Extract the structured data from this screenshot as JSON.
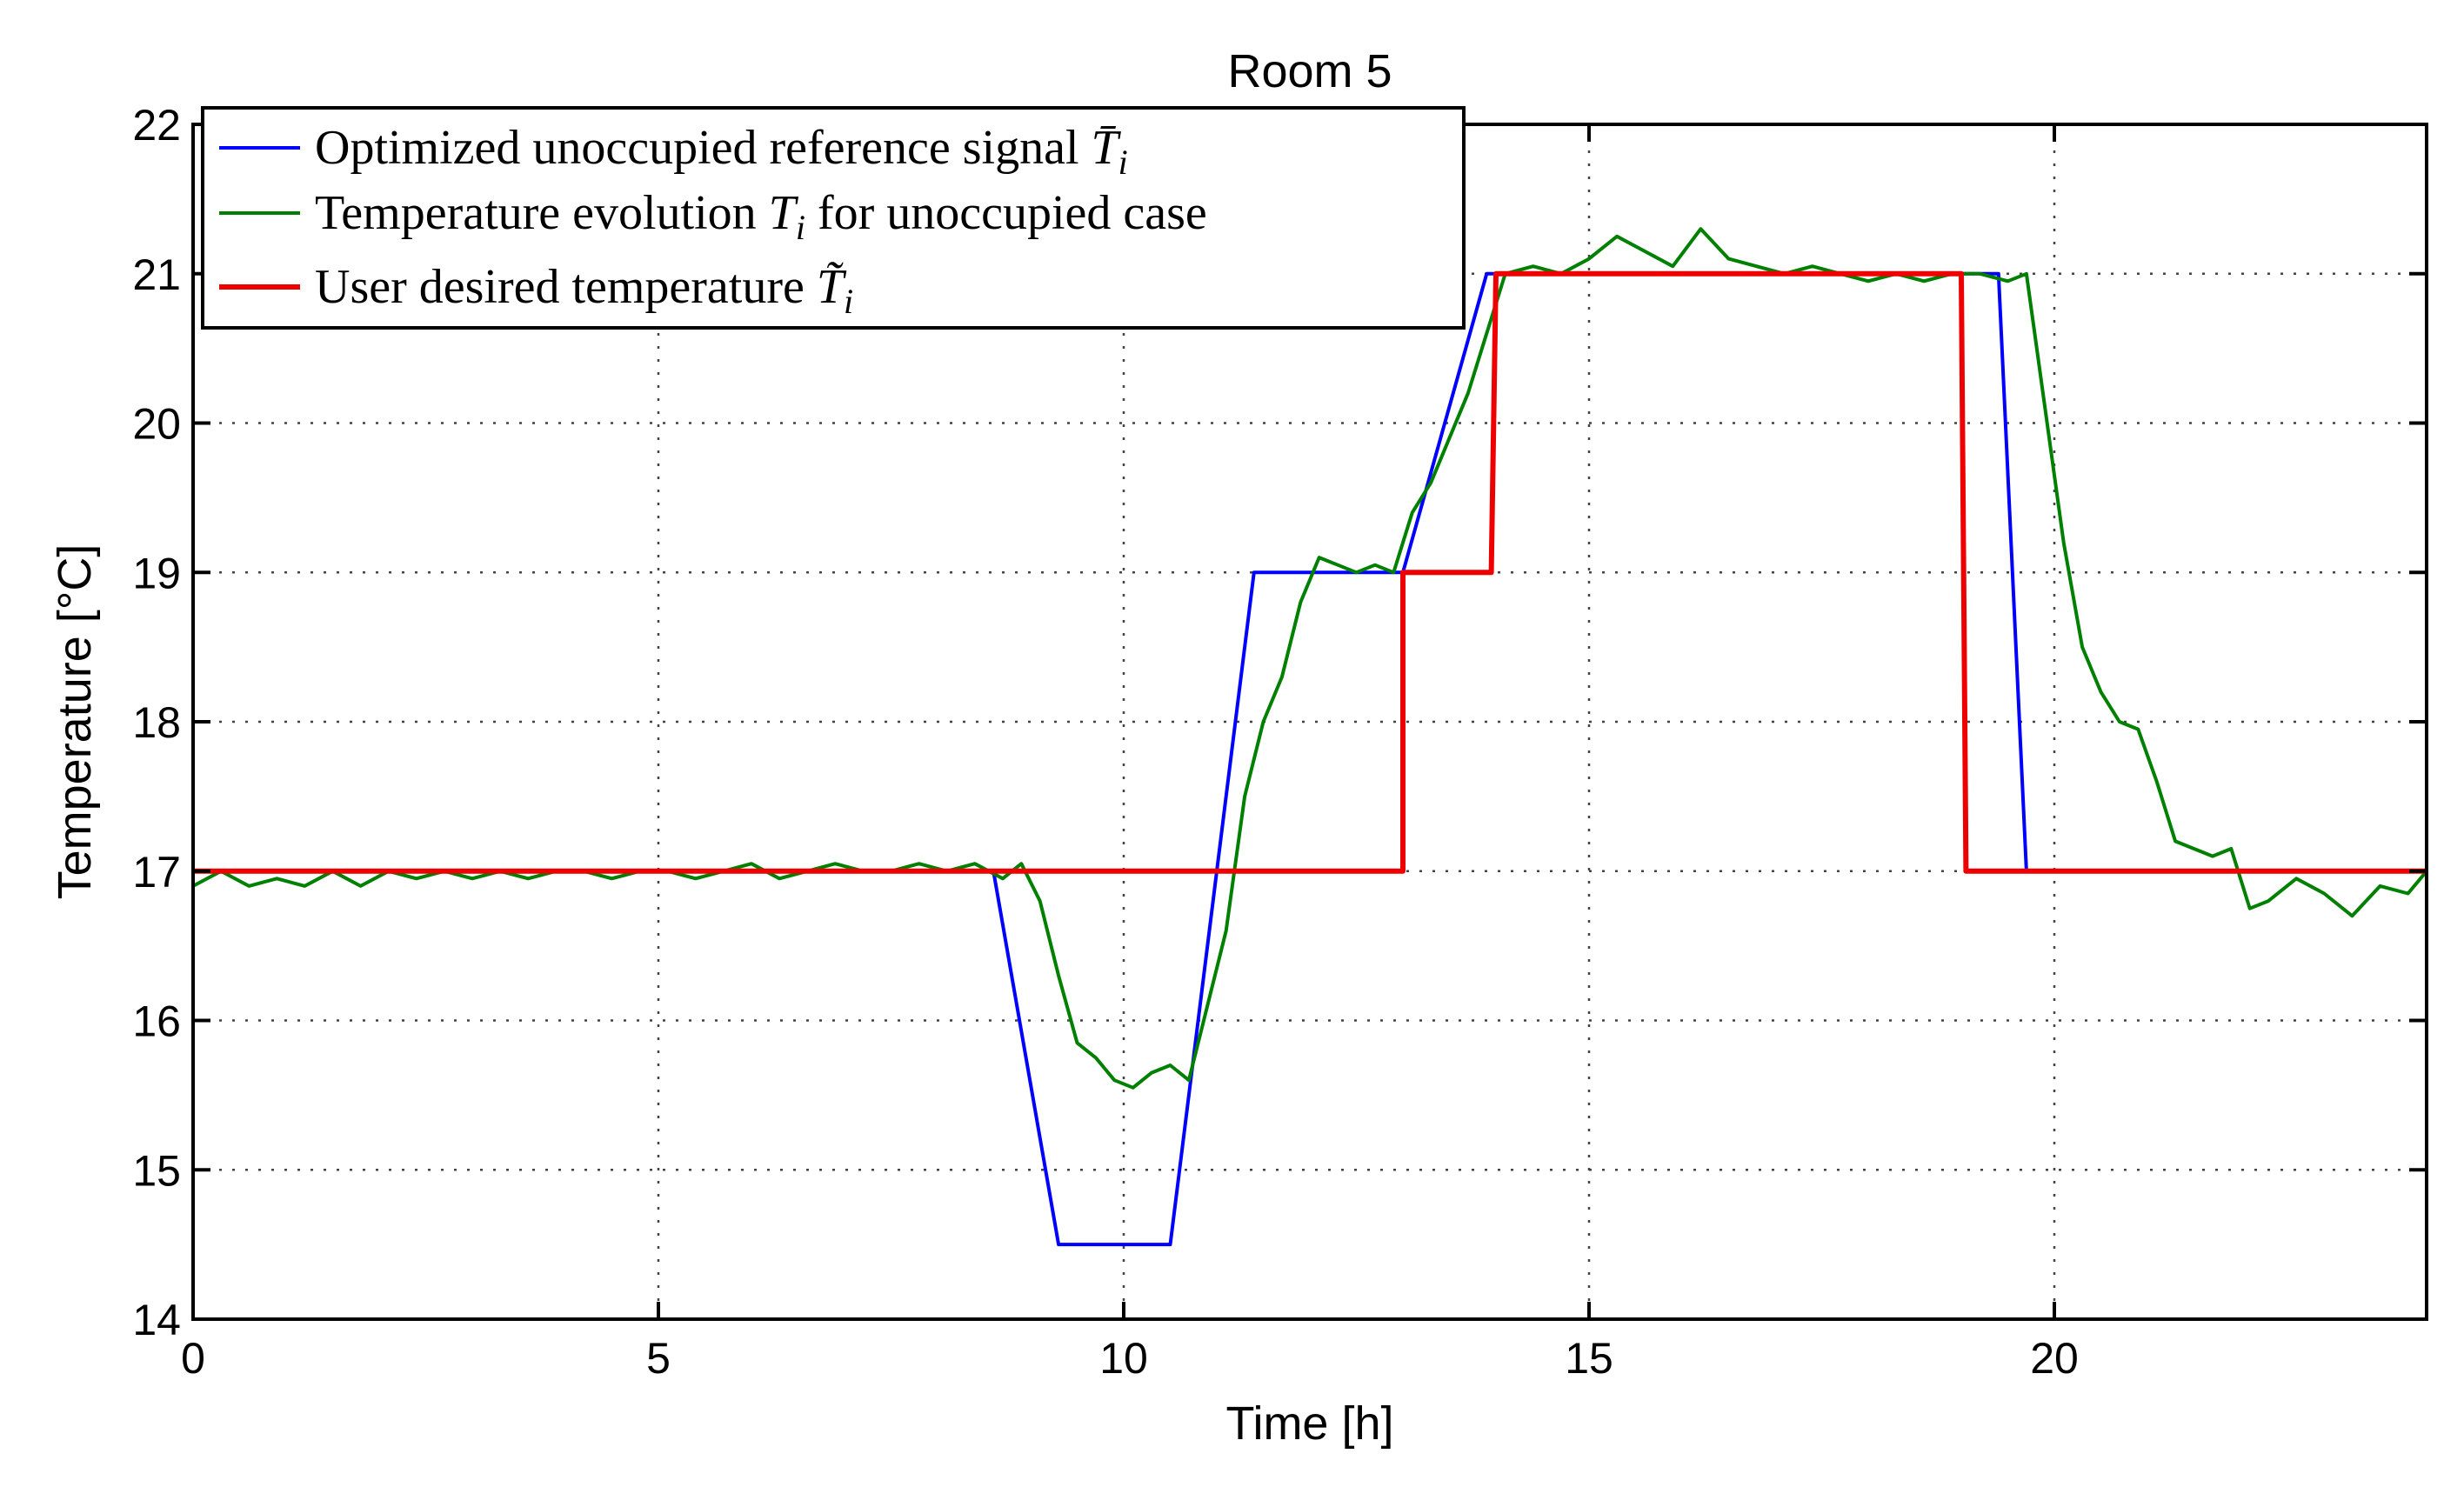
{
  "chart_data": {
    "type": "line",
    "title": "Room 5",
    "xlabel": "Time [h]",
    "ylabel": "Temperature [°C]",
    "xlim": [
      0,
      24
    ],
    "ylim": [
      14,
      22
    ],
    "xticks": [
      0,
      5,
      10,
      15,
      20
    ],
    "yticks": [
      14,
      15,
      16,
      17,
      18,
      19,
      20,
      21,
      22
    ],
    "grid": true,
    "legend_position": "top-left",
    "series": [
      {
        "name": "Optimized unoccupied reference signal",
        "symbol": "T̄",
        "subscript": "i",
        "color": "#0000ff",
        "x": [
          0,
          8.6,
          9.3,
          10.5,
          11.4,
          13.0,
          13.9,
          19.4,
          19.7,
          24
        ],
        "y": [
          17,
          17,
          14.5,
          14.5,
          19,
          19,
          21,
          21,
          17,
          17
        ]
      },
      {
        "name": "Temperature evolution",
        "symbol": "T",
        "subscript": "i",
        "name_suffix": "for unoccupied case",
        "color": "#008000",
        "x": [
          0,
          0.3,
          0.6,
          0.9,
          1.2,
          1.5,
          1.8,
          2.1,
          2.4,
          2.7,
          3.0,
          3.3,
          3.6,
          3.9,
          4.2,
          4.5,
          4.8,
          5.1,
          5.4,
          5.7,
          6.0,
          6.3,
          6.6,
          6.9,
          7.2,
          7.5,
          7.8,
          8.1,
          8.4,
          8.7,
          8.9,
          9.1,
          9.3,
          9.5,
          9.7,
          9.9,
          10.1,
          10.3,
          10.5,
          10.7,
          10.9,
          11.1,
          11.3,
          11.5,
          11.7,
          11.9,
          12.1,
          12.3,
          12.5,
          12.7,
          12.9,
          13.1,
          13.3,
          13.5,
          13.7,
          13.9,
          14.1,
          14.4,
          14.7,
          15.0,
          15.3,
          15.6,
          15.9,
          16.2,
          16.5,
          16.8,
          17.1,
          17.4,
          17.7,
          18.0,
          18.3,
          18.6,
          18.9,
          19.2,
          19.5,
          19.7,
          19.9,
          20.1,
          20.3,
          20.5,
          20.7,
          20.9,
          21.1,
          21.3,
          21.5,
          21.7,
          21.9,
          22.1,
          22.3,
          22.6,
          22.9,
          23.2,
          23.5,
          23.8,
          24.0
        ],
        "y": [
          16.9,
          17.0,
          16.9,
          16.95,
          16.9,
          17.0,
          16.9,
          17.0,
          16.95,
          17.0,
          16.95,
          17.0,
          16.95,
          17.0,
          17.0,
          16.95,
          17.0,
          17.0,
          16.95,
          17.0,
          17.05,
          16.95,
          17.0,
          17.05,
          17.0,
          17.0,
          17.05,
          17.0,
          17.05,
          16.95,
          17.05,
          16.8,
          16.3,
          15.85,
          15.75,
          15.6,
          15.55,
          15.65,
          15.7,
          15.6,
          16.1,
          16.6,
          17.5,
          18.0,
          18.3,
          18.8,
          19.1,
          19.05,
          19.0,
          19.05,
          19.0,
          19.4,
          19.6,
          19.9,
          20.2,
          20.6,
          21.0,
          21.05,
          21.0,
          21.1,
          21.25,
          21.15,
          21.05,
          21.3,
          21.1,
          21.05,
          21.0,
          21.05,
          21.0,
          20.95,
          21.0,
          20.95,
          21.0,
          21.0,
          20.95,
          21.0,
          20.1,
          19.2,
          18.5,
          18.2,
          18.0,
          17.95,
          17.6,
          17.2,
          17.15,
          17.1,
          17.15,
          16.75,
          16.8,
          16.95,
          16.85,
          16.7,
          16.9,
          16.85,
          17.0
        ]
      },
      {
        "name": "User desired temperature",
        "symbol": "T̃",
        "subscript": "i",
        "color": "#ee0000",
        "x": [
          0,
          13.0,
          13.0,
          13.95,
          14.0,
          19.0,
          19.05,
          24
        ],
        "y": [
          17,
          17,
          19,
          19,
          21,
          21,
          17,
          17
        ]
      }
    ]
  }
}
